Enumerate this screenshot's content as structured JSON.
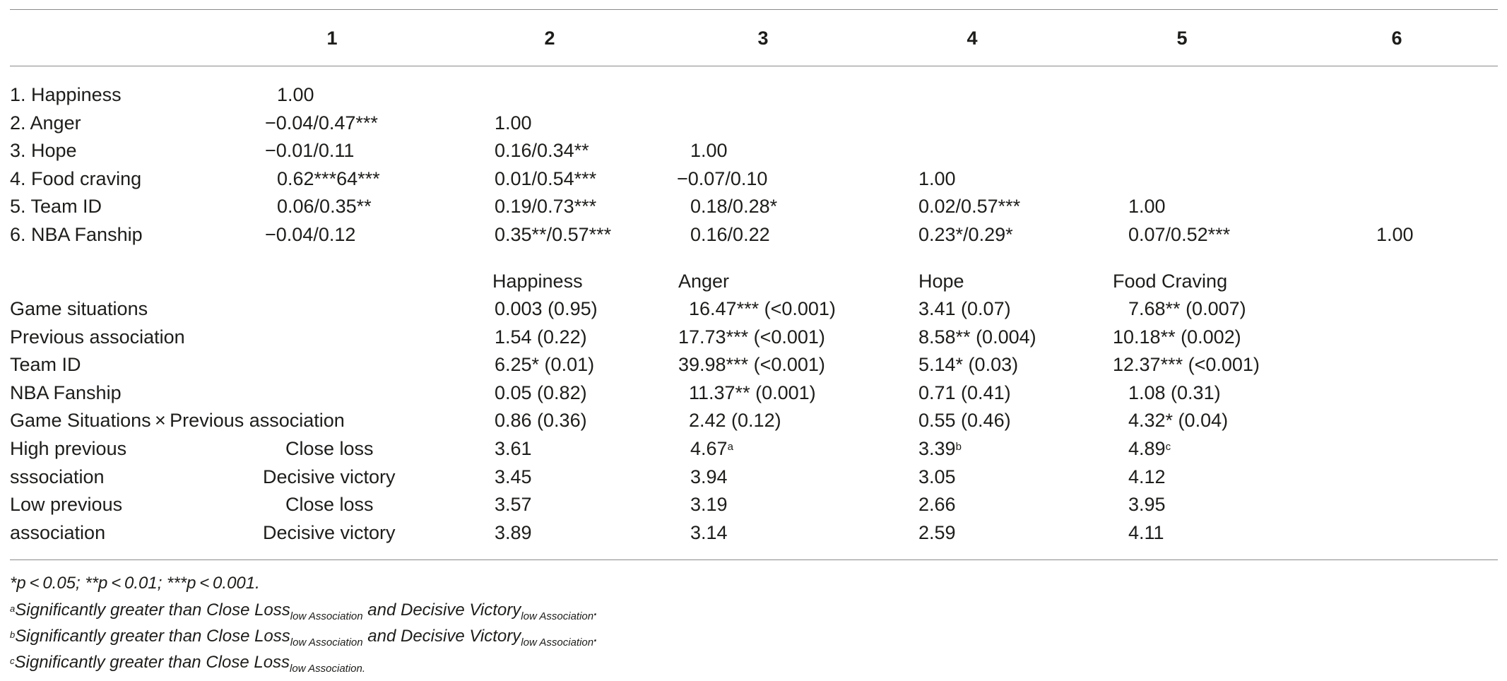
{
  "header": {
    "columns": [
      "1",
      "2",
      "3",
      "4",
      "5",
      "6"
    ]
  },
  "correlations": [
    {
      "label": "1. Happiness",
      "values": [
        "1.00"
      ]
    },
    {
      "label": "2. Anger",
      "values": [
        "−0.04/0.47***",
        "1.00"
      ]
    },
    {
      "label": "3. Hope",
      "values": [
        "−0.01/0.11",
        "0.16/0.34**",
        "1.00"
      ]
    },
    {
      "label": "4. Food craving",
      "values": [
        "0.62***64***",
        "0.01/0.54***",
        "−0.07/0.10",
        "1.00"
      ]
    },
    {
      "label": "5. Team ID",
      "values": [
        "0.06/0.35**",
        "0.19/0.73***",
        "0.18/0.28*",
        "0.02/0.57***",
        "1.00"
      ]
    },
    {
      "label": "6. NBA Fanship",
      "values": [
        "−0.04/0.12",
        "0.35**/0.57***",
        "0.16/0.22",
        "0.23*/0.29*",
        "0.07/0.52***",
        "1.00"
      ]
    }
  ],
  "anova": {
    "headers": [
      "Happiness",
      "Anger",
      "Hope",
      "Food Craving"
    ],
    "rows": [
      {
        "label": "Game situations",
        "values": [
          "0.003 (0.95)",
          "16.47*** (<0.001)",
          "3.41 (0.07)",
          "7.68** (0.007)"
        ]
      },
      {
        "label": "Previous association",
        "values": [
          "1.54 (0.22)",
          "17.73*** (<0.001)",
          "8.58** (0.004)",
          "10.18** (0.002)"
        ]
      },
      {
        "label": "Team ID",
        "values": [
          "6.25* (0.01)",
          "39.98*** (<0.001)",
          "5.14* (0.03)",
          "12.37*** (<0.001)"
        ]
      },
      {
        "label": "NBA Fanship",
        "values": [
          "0.05 (0.82)",
          "11.37** (0.001)",
          "0.71 (0.41)",
          "1.08 (0.31)"
        ]
      },
      {
        "label": "Game Situations × Previous association",
        "values": [
          "0.86 (0.36)",
          "2.42 (0.12)",
          "0.55 (0.46)",
          "4.32* (0.04)"
        ]
      }
    ]
  },
  "means": [
    {
      "group": "High previous",
      "condition": "Close loss",
      "values": [
        "3.61",
        "4.67",
        "3.39",
        "4.89"
      ],
      "sups": [
        "",
        "a",
        "b",
        "c"
      ]
    },
    {
      "group": "sssociation",
      "condition": "Decisive victory",
      "values": [
        "3.45",
        "3.94",
        "3.05",
        "4.12"
      ],
      "sups": [
        "",
        "",
        "",
        ""
      ]
    },
    {
      "group": "Low previous",
      "condition": "Close loss",
      "values": [
        "3.57",
        "3.19",
        "2.66",
        "3.95"
      ],
      "sups": [
        "",
        "",
        "",
        ""
      ]
    },
    {
      "group": "association",
      "condition": "Decisive victory",
      "values": [
        "3.89",
        "3.14",
        "2.59",
        "4.11"
      ],
      "sups": [
        "",
        "",
        "",
        ""
      ]
    }
  ],
  "footnotes": {
    "significance": "*p < 0.05; **p < 0.01; ***p < 0.001.",
    "notes": [
      {
        "mark": "a",
        "text_a": "Significantly greater than Close Loss",
        "sub_a": "low Association",
        "text_b": " and Decisive Victory",
        "sub_b": "low Association",
        "end": "."
      },
      {
        "mark": "b",
        "text_a": "Significantly greater than Close Loss",
        "sub_a": "low Association",
        "text_b": " and Decisive Victory",
        "sub_b": "low Association",
        "end": "."
      },
      {
        "mark": "c",
        "text_a": "Significantly greater than Close Loss",
        "sub_a": "low Association.",
        "text_b": "",
        "sub_b": "",
        "end": ""
      }
    ]
  }
}
